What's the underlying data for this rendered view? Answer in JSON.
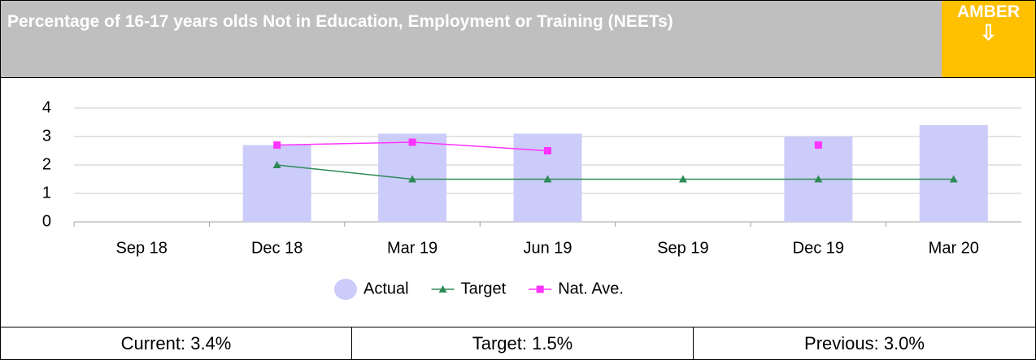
{
  "header": {
    "title": "Percentage of 16-17 years olds Not in Education, Employment or Training (NEETs)",
    "status": "AMBER",
    "arrow": "⇩"
  },
  "chart_data": {
    "type": "bar",
    "categories": [
      "Sep 18",
      "Dec 18",
      "Mar 19",
      "Jun 19",
      "Sep 19",
      "Dec 19",
      "Mar 20"
    ],
    "series": [
      {
        "name": "Actual",
        "type": "bar",
        "color": "#ccccfa",
        "values": [
          null,
          2.7,
          3.1,
          3.1,
          null,
          3.0,
          3.4
        ]
      },
      {
        "name": "Target",
        "type": "line",
        "marker": "triangle",
        "color": "#2e8b57",
        "values": [
          null,
          2.0,
          1.5,
          1.5,
          1.5,
          1.5,
          1.5
        ]
      },
      {
        "name": "Nat. Ave.",
        "type": "line",
        "marker": "square",
        "color": "#ff33ff",
        "values": [
          null,
          2.7,
          2.8,
          2.5,
          null,
          2.7,
          null
        ]
      }
    ],
    "ylim": [
      0,
      4
    ],
    "yticks": [
      0,
      1,
      2,
      3,
      4
    ],
    "grid": true,
    "legend": "bottom"
  },
  "footer": {
    "cells": [
      "Current: 3.4%",
      "Target: 1.5%",
      "Previous: 3.0%"
    ]
  }
}
